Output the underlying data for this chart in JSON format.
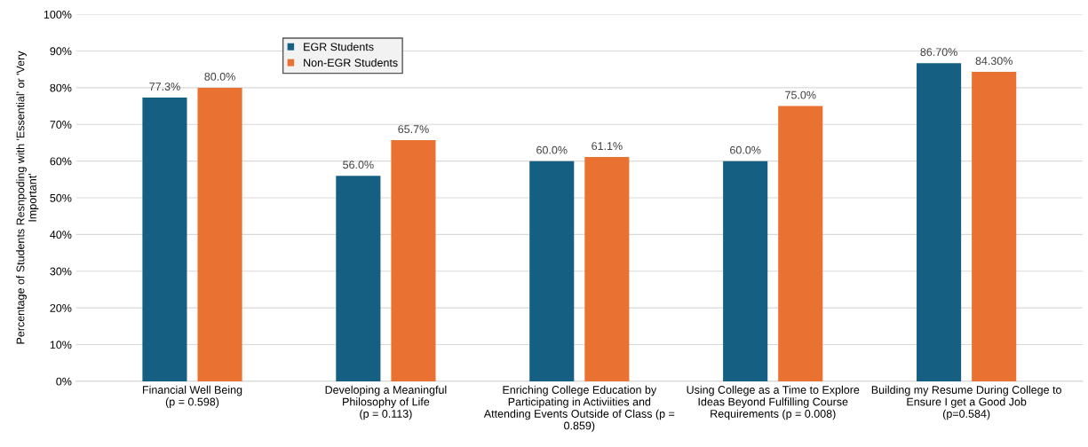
{
  "chart_data": {
    "type": "bar",
    "ylabel": "Percentage of Students Resnpoding with 'Essential' or 'Very\nImportant'",
    "categories": [
      "Financial Well Being\n(p = 0.598)",
      "Developing a Meaningful\nPhilosophy of Life\n(p = 0.113)",
      "Enriching College Education by\nParticipating in Activiities and\nAttending Events Outside of Class (p =\n0.859)",
      "Using College as a Time to Explore\nIdeas Beyond Fulfilling Course\nRequirements (p = 0.008)",
      "Building my Resume During College to\nEnsure I get a Good Job\n(p=0.584)"
    ],
    "series": [
      {
        "name": "EGR Students",
        "color": "#156082",
        "values": [
          77.3,
          56.0,
          60.0,
          60.0,
          86.7
        ],
        "value_labels": [
          "77.3%",
          "56.0%",
          "60.0%",
          "60.0%",
          "86.70%"
        ]
      },
      {
        "name": "Non-EGR Students",
        "color": "#e97132",
        "values": [
          80.0,
          65.7,
          61.1,
          75.0,
          84.3
        ],
        "value_labels": [
          "80.0%",
          "65.7%",
          "61.1%",
          "75.0%",
          "84.30%"
        ]
      }
    ],
    "ylim": [
      0,
      100
    ],
    "yticks": [
      {
        "value": 0,
        "label": "0%"
      },
      {
        "value": 10,
        "label": "10%"
      },
      {
        "value": 20,
        "label": "20%"
      },
      {
        "value": 30,
        "label": "30%"
      },
      {
        "value": 40,
        "label": "40%"
      },
      {
        "value": 50,
        "label": "50%"
      },
      {
        "value": 60,
        "label": "60%"
      },
      {
        "value": 70,
        "label": "70%"
      },
      {
        "value": 80,
        "label": "80%"
      },
      {
        "value": 90,
        "label": "90%"
      },
      {
        "value": 100,
        "label": "100%"
      }
    ],
    "grid": "y",
    "legend": "top left"
  }
}
